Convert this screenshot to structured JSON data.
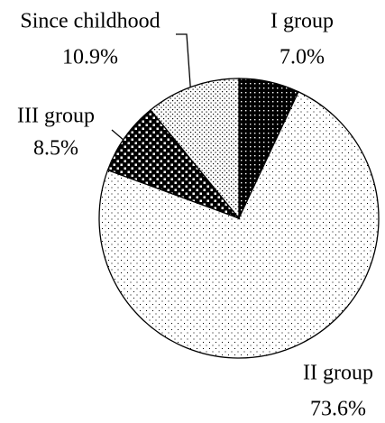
{
  "chart_data": {
    "type": "pie",
    "categories": [
      "I group",
      "II group",
      "III group",
      "Since childhood"
    ],
    "values": [
      7.0,
      73.6,
      8.5,
      10.9
    ],
    "value_labels": [
      "7.0%",
      "73.6%",
      "8.5%",
      "10.9%"
    ]
  }
}
